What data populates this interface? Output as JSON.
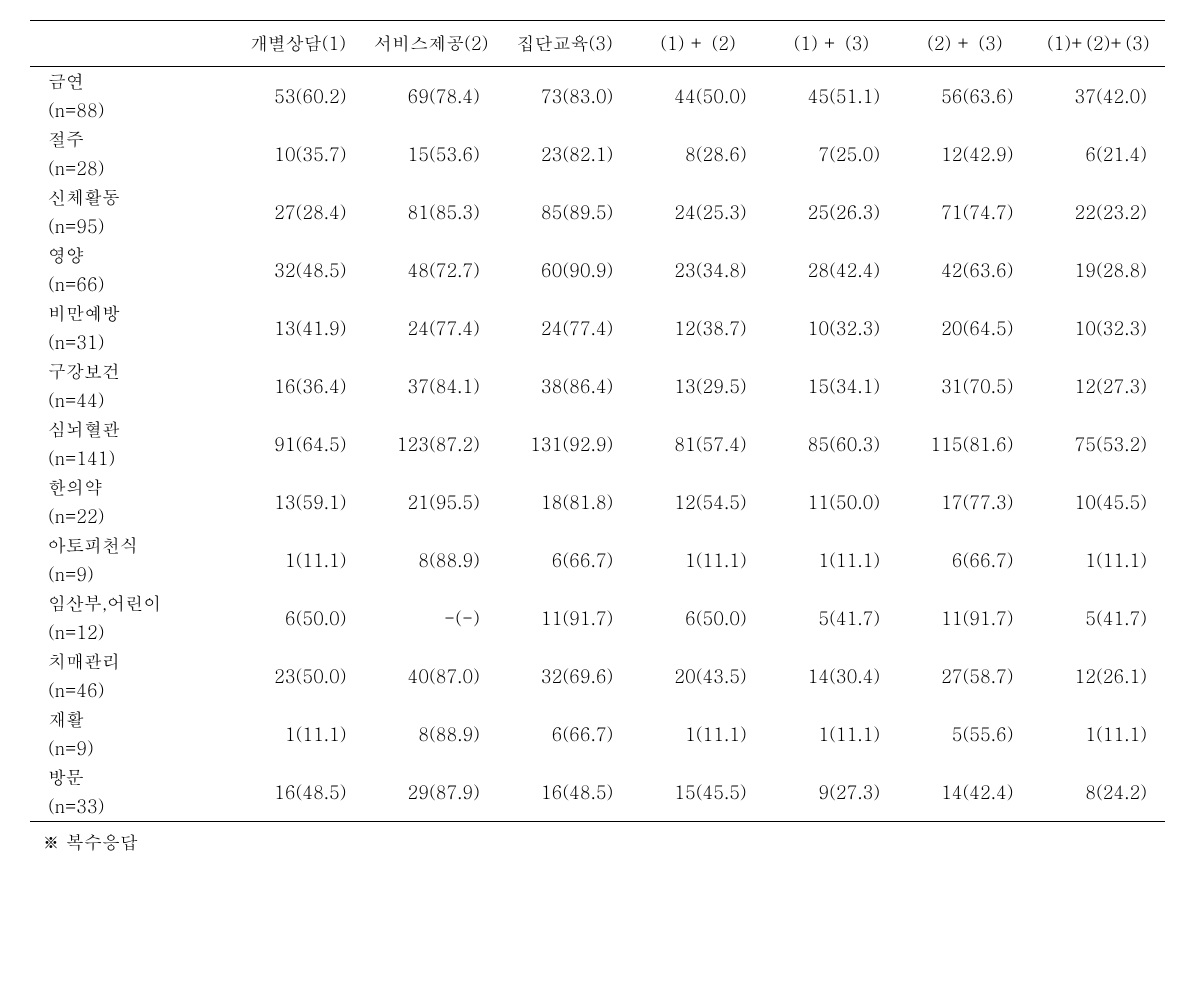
{
  "table": {
    "columns": [
      "개별상담(1)",
      "서비스제공(2)",
      "집단교육(3)",
      "(1) + (2)",
      "(1) + (3)",
      "(2) + (3)",
      "(1)+(2)+(3)"
    ],
    "rows": [
      {
        "label_line1": "금연",
        "label_line2": "(n=88)",
        "cells": [
          "53(60.2)",
          "69(78.4)",
          "73(83.0)",
          "44(50.0)",
          "45(51.1)",
          "56(63.6)",
          "37(42.0)"
        ]
      },
      {
        "label_line1": "절주",
        "label_line2": "(n=28)",
        "cells": [
          "10(35.7)",
          "15(53.6)",
          "23(82.1)",
          "8(28.6)",
          "7(25.0)",
          "12(42.9)",
          "6(21.4)"
        ]
      },
      {
        "label_line1": "신체활동",
        "label_line2": "(n=95)",
        "cells": [
          "27(28.4)",
          "81(85.3)",
          "85(89.5)",
          "24(25.3)",
          "25(26.3)",
          "71(74.7)",
          "22(23.2)"
        ]
      },
      {
        "label_line1": "영양",
        "label_line2": "(n=66)",
        "cells": [
          "32(48.5)",
          "48(72.7)",
          "60(90.9)",
          "23(34.8)",
          "28(42.4)",
          "42(63.6)",
          "19(28.8)"
        ]
      },
      {
        "label_line1": "비만예방",
        "label_line2": "(n=31)",
        "cells": [
          "13(41.9)",
          "24(77.4)",
          "24(77.4)",
          "12(38.7)",
          "10(32.3)",
          "20(64.5)",
          "10(32.3)"
        ]
      },
      {
        "label_line1": "구강보건",
        "label_line2": "(n=44)",
        "cells": [
          "16(36.4)",
          "37(84.1)",
          "38(86.4)",
          "13(29.5)",
          "15(34.1)",
          "31(70.5)",
          "12(27.3)"
        ]
      },
      {
        "label_line1": "심뇌혈관",
        "label_line2": "(n=141)",
        "cells": [
          "91(64.5)",
          "123(87.2)",
          "131(92.9)",
          "81(57.4)",
          "85(60.3)",
          "115(81.6)",
          "75(53.2)"
        ]
      },
      {
        "label_line1": "한의약",
        "label_line2": "(n=22)",
        "cells": [
          "13(59.1)",
          "21(95.5)",
          "18(81.8)",
          "12(54.5)",
          "11(50.0)",
          "17(77.3)",
          "10(45.5)"
        ]
      },
      {
        "label_line1": "아토피천식",
        "label_line2": "(n=9)",
        "cells": [
          "1(11.1)",
          "8(88.9)",
          "6(66.7)",
          "1(11.1)",
          "1(11.1)",
          "6(66.7)",
          "1(11.1)"
        ]
      },
      {
        "label_line1": "임산부,어린이",
        "label_line2": "(n=12)",
        "cells": [
          "6(50.0)",
          "-(-)",
          "11(91.7)",
          "6(50.0)",
          "5(41.7)",
          "11(91.7)",
          "5(41.7)"
        ]
      },
      {
        "label_line1": "치매관리",
        "label_line2": "(n=46)",
        "cells": [
          "23(50.0)",
          "40(87.0)",
          "32(69.6)",
          "20(43.5)",
          "14(30.4)",
          "27(58.7)",
          "12(26.1)"
        ]
      },
      {
        "label_line1": "재활",
        "label_line2": "(n=9)",
        "cells": [
          "1(11.1)",
          "8(88.9)",
          "6(66.7)",
          "1(11.1)",
          "1(11.1)",
          "5(55.6)",
          "1(11.1)"
        ]
      },
      {
        "label_line1": "방문",
        "label_line2": "(n=33)",
        "cells": [
          "16(48.5)",
          "29(87.9)",
          "16(48.5)",
          "15(45.5)",
          "9(27.3)",
          "14(42.4)",
          "8(24.2)"
        ]
      }
    ]
  },
  "footnote": "※ 복수응답"
}
